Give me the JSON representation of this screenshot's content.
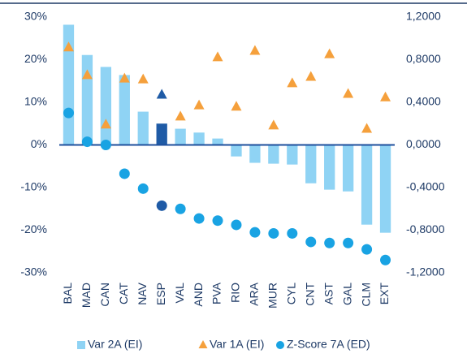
{
  "chart_data": {
    "type": "bar",
    "categories": [
      "BAL",
      "MAD",
      "CAN",
      "CAT",
      "NAV",
      "ESP",
      "VAL",
      "AND",
      "PVA",
      "RIO",
      "ARA",
      "MUR",
      "CYL",
      "CNT",
      "AST",
      "GAL",
      "CLM",
      "EXT"
    ],
    "series": [
      {
        "name": "Var 2A (EI)",
        "type": "bar",
        "color": "#8fd3f4",
        "values": [
          28.2,
          21.1,
          18.3,
          16.4,
          7.8,
          5.0,
          3.8,
          2.9,
          1.5,
          -2.7,
          -4.2,
          -4.4,
          -4.6,
          -9.0,
          -10.5,
          -10.9,
          -18.7,
          -20.6
        ]
      },
      {
        "name": "Var 1A (EI)",
        "type": "scatter",
        "marker": "triangle",
        "color": "#f5a03c",
        "values": [
          22.9,
          16.4,
          4.8,
          15.6,
          15.4,
          11.8,
          6.7,
          9.3,
          20.6,
          9.0,
          22.1,
          4.6,
          14.5,
          16.0,
          21.3,
          12.0,
          3.8,
          11.2
        ]
      },
      {
        "name": "Z-Score 7A (ED)",
        "type": "scatter",
        "marker": "circle",
        "axis": "y2",
        "color": "#19a3e3",
        "values": [
          0.3,
          0.03,
          0.0,
          -0.27,
          -0.41,
          -0.57,
          -0.6,
          -0.69,
          -0.71,
          -0.75,
          -0.82,
          -0.83,
          -0.83,
          -0.91,
          -0.92,
          -0.92,
          -0.98,
          -1.08
        ]
      }
    ],
    "highlight": {
      "index": 5,
      "color": "#1f5ba6"
    },
    "ylim": [
      -30,
      30
    ],
    "yticks": [
      {
        "value": -30,
        "label": "-30%"
      },
      {
        "value": -20,
        "label": "-20%"
      },
      {
        "value": -10,
        "label": "-10%"
      },
      {
        "value": 0,
        "label": "0%"
      },
      {
        "value": 10,
        "label": "10%"
      },
      {
        "value": 20,
        "label": "20%"
      },
      {
        "value": 30,
        "label": "30%"
      }
    ],
    "y2lim": [
      -1.2,
      1.2
    ],
    "y2ticks": [
      {
        "value": -1.2,
        "label": "-1,2000"
      },
      {
        "value": -0.8,
        "label": "-0,8000"
      },
      {
        "value": -0.4,
        "label": "-0,4000"
      },
      {
        "value": 0,
        "label": "0,0000"
      },
      {
        "value": 0.4,
        "label": "0,4000"
      },
      {
        "value": 0.8,
        "label": "0,8000"
      },
      {
        "value": 1.2,
        "label": "1,2000"
      }
    ],
    "legend": "bottom"
  }
}
